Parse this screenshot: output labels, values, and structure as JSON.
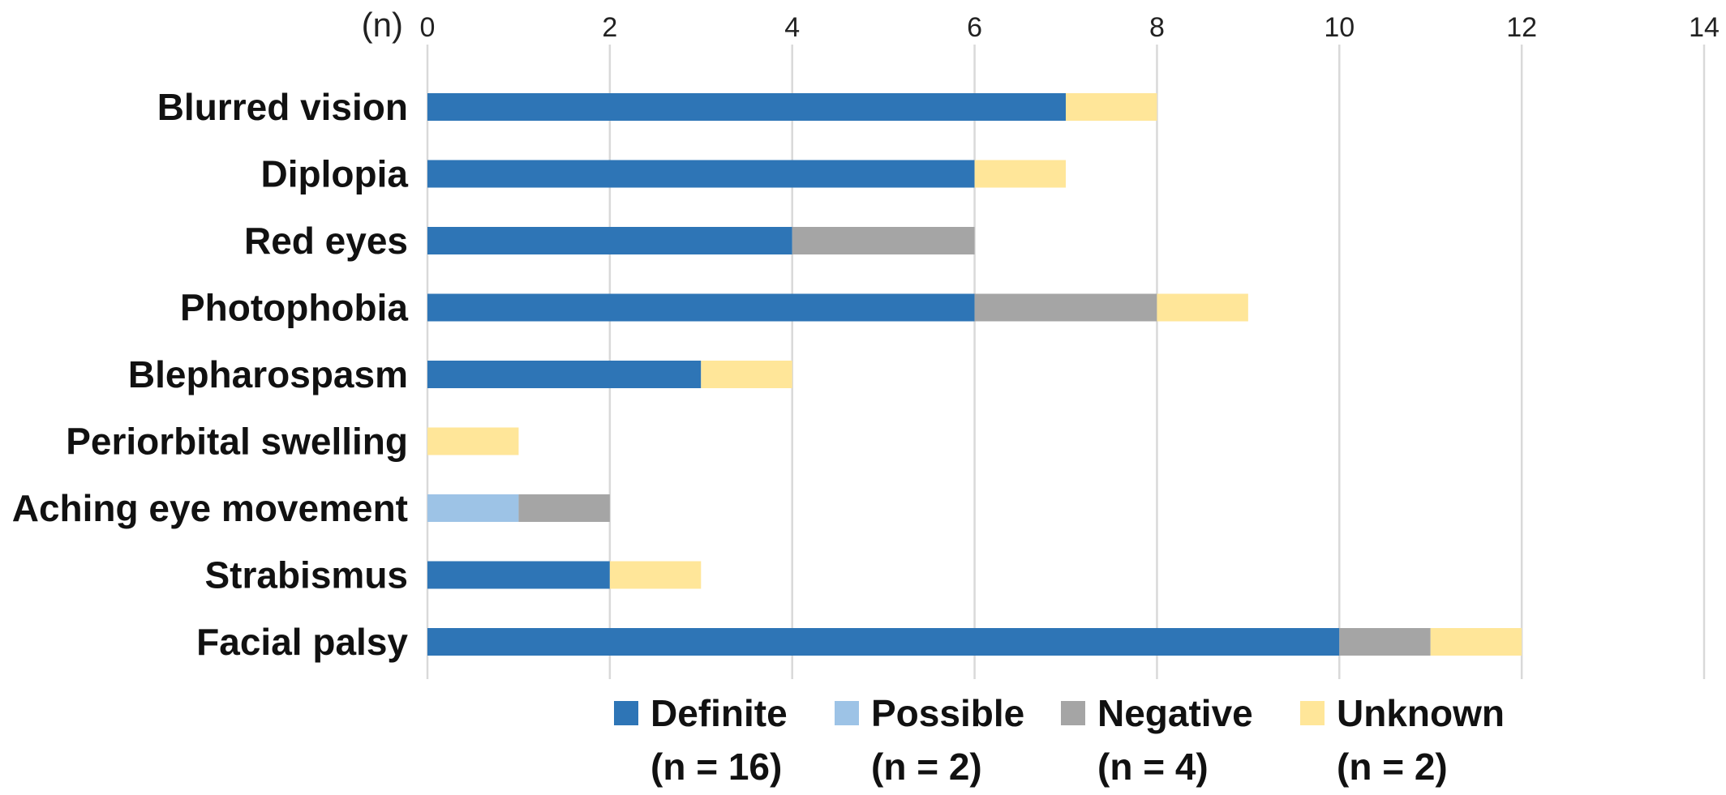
{
  "chart_data": {
    "type": "bar",
    "orientation": "horizontal",
    "stacked": true,
    "axis_unit_label": "(n)",
    "xlim": [
      0,
      14
    ],
    "x_ticks": [
      "0",
      "2",
      "4",
      "6",
      "8",
      "10",
      "12",
      "14"
    ],
    "x_axis_position": "top",
    "grid": true,
    "legend_position": "bottom",
    "categories": [
      "Blurred vision",
      "Diplopia",
      "Red eyes",
      "Photophobia",
      "Blepharospasm",
      "Periorbital swelling",
      "Aching eye movement",
      "Strabismus",
      "Facial palsy"
    ],
    "series": [
      {
        "name": "Definite",
        "count_label": "(n = 16)",
        "color": "#2E75B6",
        "values": [
          7,
          6,
          4,
          6,
          3,
          0,
          0,
          2,
          10
        ]
      },
      {
        "name": "Possible",
        "count_label": "(n = 2)",
        "color": "#9DC3E6",
        "values": [
          0,
          0,
          0,
          0,
          0,
          0,
          1,
          0,
          0
        ]
      },
      {
        "name": "Negative",
        "count_label": "(n = 4)",
        "color": "#A5A5A5",
        "values": [
          0,
          0,
          2,
          2,
          0,
          0,
          1,
          0,
          1
        ]
      },
      {
        "name": "Unknown",
        "count_label": "(n = 2)",
        "color": "#FFE699",
        "values": [
          1,
          1,
          0,
          1,
          1,
          1,
          0,
          1,
          1
        ]
      }
    ]
  }
}
